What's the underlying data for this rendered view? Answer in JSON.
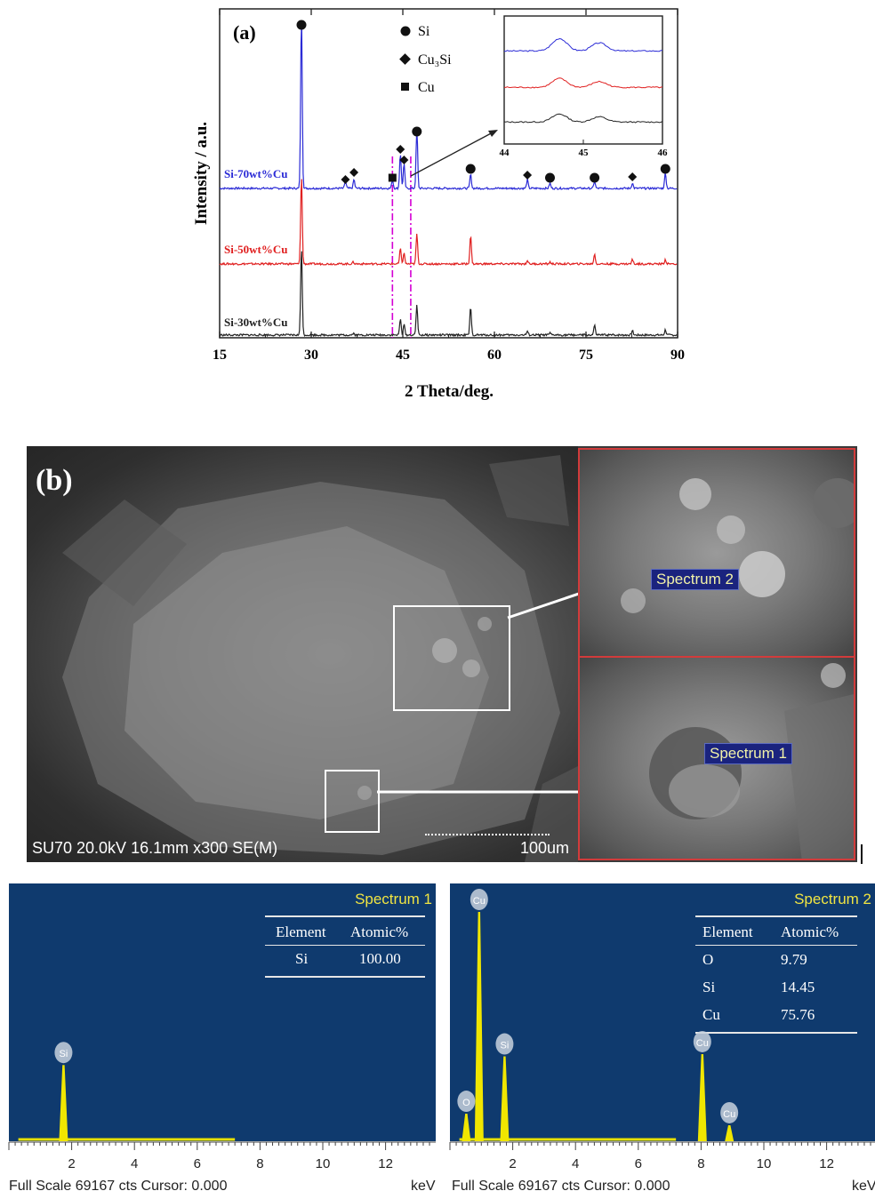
{
  "panel_a": {
    "label": "(a)",
    "ylabel": "Intensity / a.u.",
    "xlabel": "2 Theta/deg.",
    "legend": [
      {
        "marker": "circle",
        "label": "Si"
      },
      {
        "marker": "diamond",
        "label": "Cu₃Si"
      },
      {
        "marker": "square",
        "label": "Cu"
      }
    ],
    "xticks": [
      "15",
      "30",
      "45",
      "60",
      "75",
      "90"
    ],
    "inset_xticks": [
      "44",
      "45",
      "46"
    ],
    "series_labels": [
      {
        "label": "Si-70wt%Cu",
        "color": "#2b2bd6"
      },
      {
        "label": "Si-50wt%Cu",
        "color": "#e02020"
      },
      {
        "label": "Si-30wt%Cu",
        "color": "#222222"
      }
    ]
  },
  "chart_data": {
    "type": "line",
    "title": "",
    "xlabel": "2 Theta/deg.",
    "ylabel": "Intensity / a.u.",
    "xlim": [
      15,
      90
    ],
    "series": [
      {
        "name": "Si-70wt%Cu",
        "color": "#2b2bd6",
        "peaks": [
          [
            28.4,
            100
          ],
          [
            35.6,
            4
          ],
          [
            37.0,
            5
          ],
          [
            43.3,
            5
          ],
          [
            44.6,
            20
          ],
          [
            45.2,
            14
          ],
          [
            47.3,
            34
          ],
          [
            56.1,
            8
          ],
          [
            65.4,
            5
          ],
          [
            69.1,
            3
          ],
          [
            76.4,
            4
          ],
          [
            82.6,
            3
          ],
          [
            88.0,
            9
          ]
        ]
      },
      {
        "name": "Si-50wt%Cu",
        "color": "#e02020",
        "peaks": [
          [
            28.4,
            100
          ],
          [
            36.9,
            2
          ],
          [
            44.6,
            17
          ],
          [
            45.2,
            12
          ],
          [
            47.3,
            34
          ],
          [
            56.1,
            32
          ],
          [
            65.4,
            4
          ],
          [
            69.1,
            2
          ],
          [
            76.4,
            11
          ],
          [
            82.6,
            5
          ],
          [
            88.0,
            5
          ]
        ]
      },
      {
        "name": "Si-30wt%Cu",
        "color": "#222222",
        "peaks": [
          [
            28.4,
            100
          ],
          [
            36.9,
            2
          ],
          [
            44.6,
            18
          ],
          [
            45.2,
            12
          ],
          [
            47.3,
            34
          ],
          [
            56.1,
            31
          ],
          [
            65.4,
            4
          ],
          [
            69.1,
            2
          ],
          [
            76.4,
            11
          ],
          [
            82.6,
            5
          ],
          [
            88.0,
            6
          ]
        ]
      }
    ],
    "markers": {
      "Si": [
        28.4,
        47.3,
        56.1,
        69.1,
        76.4,
        88.0
      ],
      "Cu3Si": [
        35.6,
        37.0,
        44.6,
        45.2,
        65.4,
        82.6
      ],
      "Cu": [
        43.3
      ]
    },
    "reference_lines": [
      43.3,
      46.3
    ],
    "inset": {
      "xlim": [
        44,
        46
      ],
      "peaks": [
        44.7,
        45.2
      ]
    }
  },
  "panel_b": {
    "label": "(b)",
    "sem_caption": "SU70 20.0kV 16.1mm x300 SE(M)",
    "scale_bar": "100um",
    "inset_top_tag": "Spectrum 2",
    "inset_bottom_tag": "Spectrum 1"
  },
  "eds": [
    {
      "title": "Spectrum 1",
      "headers": [
        "Element",
        "Atomic%"
      ],
      "rows": [
        [
          "Si",
          "100.00"
        ]
      ],
      "xticks": [
        "2",
        "4",
        "6",
        "8",
        "10",
        "12"
      ],
      "footer": "Full Scale 69167 cts Cursor: 0.000",
      "unit": "keV",
      "peaks": [
        {
          "label": "Si",
          "energy": 1.74,
          "height": 0.33
        }
      ]
    },
    {
      "title": "Spectrum 2",
      "headers": [
        "Element",
        "Atomic%"
      ],
      "rows": [
        [
          "O",
          "9.79"
        ],
        [
          "Si",
          "14.45"
        ],
        [
          "Cu",
          "75.76"
        ]
      ],
      "xticks": [
        "2",
        "4",
        "6",
        "8",
        "10",
        "12"
      ],
      "footer": "Full Scale 69167 cts Cursor: 0.000",
      "unit": "keV",
      "peaks": [
        {
          "label": "O",
          "energy": 0.52,
          "height": 0.12
        },
        {
          "label": "Cu",
          "energy": 0.93,
          "height": 1.0
        },
        {
          "label": "Si",
          "energy": 1.74,
          "height": 0.37
        },
        {
          "label": "Cu",
          "energy": 8.04,
          "height": 0.38
        },
        {
          "label": "Cu",
          "energy": 8.9,
          "height": 0.07
        }
      ]
    }
  ]
}
